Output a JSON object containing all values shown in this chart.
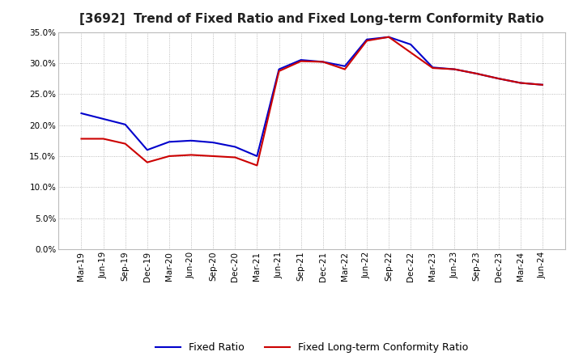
{
  "title": "[3692]  Trend of Fixed Ratio and Fixed Long-term Conformity Ratio",
  "x_labels": [
    "Mar-19",
    "Jun-19",
    "Sep-19",
    "Dec-19",
    "Mar-20",
    "Jun-20",
    "Sep-20",
    "Dec-20",
    "Mar-21",
    "Jun-21",
    "Sep-21",
    "Dec-21",
    "Mar-22",
    "Jun-22",
    "Sep-22",
    "Dec-22",
    "Mar-23",
    "Jun-23",
    "Sep-23",
    "Dec-23",
    "Mar-24",
    "Jun-24"
  ],
  "fixed_ratio": [
    0.219,
    0.21,
    0.201,
    0.16,
    0.173,
    0.175,
    0.172,
    0.165,
    0.15,
    0.29,
    0.305,
    0.302,
    0.295,
    0.338,
    0.342,
    0.33,
    0.293,
    0.29,
    0.283,
    0.275,
    0.268,
    0.265
  ],
  "fixed_lt_ratio": [
    0.178,
    0.178,
    0.17,
    0.14,
    0.15,
    0.152,
    0.15,
    0.148,
    0.135,
    0.287,
    0.303,
    0.302,
    0.29,
    0.336,
    0.342,
    0.317,
    0.292,
    0.29,
    0.283,
    0.275,
    0.268,
    0.265
  ],
  "fixed_ratio_color": "#0000cc",
  "fixed_lt_ratio_color": "#cc0000",
  "ylim": [
    0.0,
    0.35
  ],
  "yticks": [
    0.0,
    0.05,
    0.1,
    0.15,
    0.2,
    0.25,
    0.3,
    0.35
  ],
  "background_color": "#ffffff",
  "plot_bg_color": "#ffffff",
  "grid_color": "#aaaaaa",
  "title_fontsize": 11,
  "legend_fontsize": 9,
  "tick_fontsize": 7.5
}
